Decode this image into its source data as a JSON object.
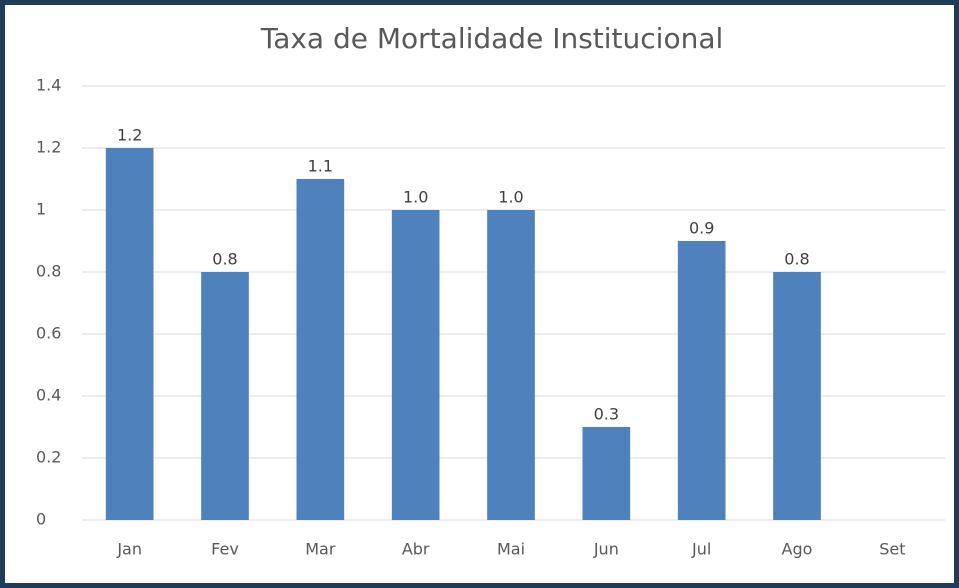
{
  "chart_data": {
    "type": "bar",
    "title": "Taxa de Mortalidade Institucional",
    "categories": [
      "Jan",
      "Fev",
      "Mar",
      "Abr",
      "Mai",
      "Jun",
      "Jul",
      "Ago",
      "Set"
    ],
    "values": [
      1.2,
      0.8,
      1.1,
      1.0,
      1.0,
      0.3,
      0.9,
      0.8,
      null
    ],
    "value_labels": [
      "1.2",
      "0.8",
      "1.1",
      "1.0",
      "1.0",
      "0.3",
      "0.9",
      "0.8",
      null
    ],
    "color": "#4f81bd",
    "ylim": [
      0,
      1.4
    ],
    "yticks": [
      0,
      0.2,
      0.4,
      0.6,
      0.8,
      1,
      1.2,
      1.4
    ],
    "grid": true
  }
}
